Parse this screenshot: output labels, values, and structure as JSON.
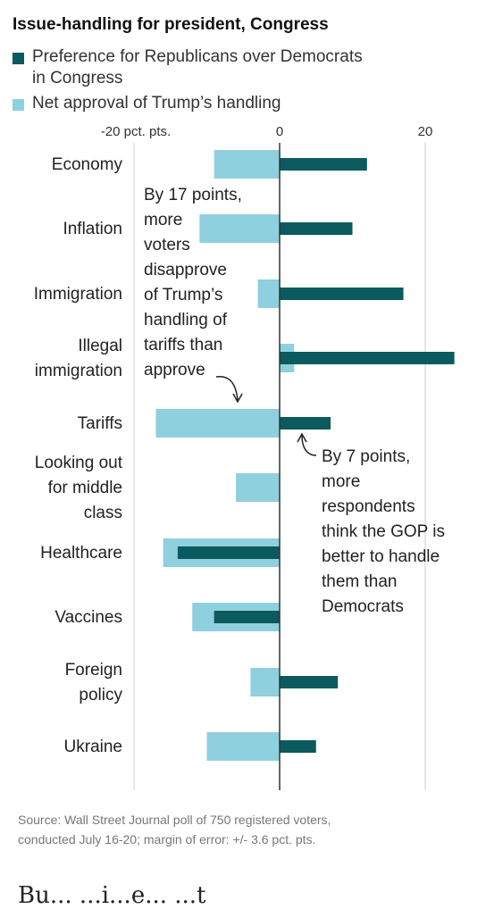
{
  "colors": {
    "republican_pref": "#0a5a5e",
    "trump_approval": "#8fd0de",
    "axis": "#333333",
    "grid": "#cccccc",
    "text": "#222222"
  },
  "chart_data": {
    "type": "bar",
    "orientation": "horizontal",
    "title": "Issue-handling for president, Congress",
    "legend": [
      {
        "name_lines": [
          "Preference for Republicans over Democrats",
          "in Congress"
        ],
        "color": "#0a5a5e"
      },
      {
        "name_lines": [
          "Net approval of Trump’s handling"
        ],
        "color": "#8fd0de"
      }
    ],
    "x_ticks": [
      {
        "value": -20,
        "label": "-20 pct. pts."
      },
      {
        "value": 0,
        "label": "0"
      },
      {
        "value": 20,
        "label": "20"
      }
    ],
    "xlim": [
      -20,
      24
    ],
    "grid": true,
    "categories": [
      {
        "label_lines": [
          "Economy"
        ]
      },
      {
        "label_lines": [
          "Inflation"
        ]
      },
      {
        "label_lines": [
          "Immigration"
        ]
      },
      {
        "label_lines": [
          "Illegal",
          "immigration"
        ]
      },
      {
        "label_lines": [
          "Tariffs"
        ]
      },
      {
        "label_lines": [
          "Looking out",
          "for middle",
          "class"
        ]
      },
      {
        "label_lines": [
          "Healthcare"
        ]
      },
      {
        "label_lines": [
          "Vaccines"
        ]
      },
      {
        "label_lines": [
          "Foreign",
          "policy"
        ]
      },
      {
        "label_lines": [
          "Ukraine"
        ]
      }
    ],
    "series": [
      {
        "name": "Preference for Republicans over Democrats in Congress",
        "values": [
          12,
          10,
          17,
          24,
          7,
          0,
          -14,
          -9,
          8,
          5
        ]
      },
      {
        "name": "Net approval of Trump’s handling",
        "values": [
          -9,
          -11,
          -3,
          2,
          -17,
          -6,
          -16,
          -12,
          -4,
          -10
        ]
      }
    ],
    "annotations": [
      {
        "lines": [
          "By 17 points,",
          "more",
          "voters",
          "disapprove",
          "of Trump’s",
          "handling of",
          "tariffs than",
          "approve"
        ],
        "target": "Tariffs"
      },
      {
        "lines": [
          "By 7 points,",
          "more",
          "respondents",
          "think the GOP is",
          "better to handle",
          "them than",
          "Democrats"
        ],
        "target": "Tariffs"
      }
    ],
    "source_lines": [
      "Source: Wall Street Journal poll of 750 registered voters,",
      "conducted July 16-20; margin of error: +/- 3.6 pct. pts."
    ]
  },
  "page_fragment": "Bu... ...i...e... ...t"
}
